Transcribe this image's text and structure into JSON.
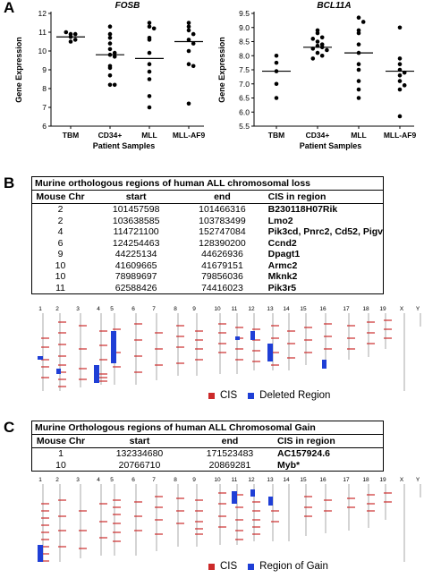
{
  "panels": {
    "a": "A",
    "b": "B",
    "c": "C"
  },
  "colors": {
    "cis": "#cc2a2a",
    "region": "#1f3fd6",
    "chrom_line": "#aaaaaa",
    "marker": "#000000"
  },
  "chart_data": [
    {
      "type": "scatter",
      "title": "FOSB",
      "xlabel": "Patient Samples",
      "ylabel": "Gene Expression",
      "categories": [
        "TBM",
        "CD34+",
        "MLL",
        "MLL-AF9"
      ],
      "ylim": [
        6,
        12
      ],
      "yticks": [
        "6",
        "7",
        "8",
        "9",
        "10",
        "11",
        "12"
      ],
      "means": [
        10.75,
        9.8,
        9.6,
        10.5
      ],
      "points": [
        [
          10.9,
          10.9,
          10.75,
          10.5,
          11.0,
          10.6
        ],
        [
          11.3,
          10.9,
          10.7,
          10.4,
          10.1,
          9.8,
          9.7,
          9.2,
          9.1,
          8.7,
          8.2,
          8.2,
          9.9
        ],
        [
          11.5,
          11.3,
          11.2,
          10.7,
          10.6,
          9.9,
          9.3,
          8.9,
          8.5,
          7.6,
          7.0
        ],
        [
          11.5,
          11.3,
          11.1,
          10.9,
          10.6,
          10.4,
          10.0,
          9.3,
          9.2,
          7.2
        ]
      ]
    },
    {
      "type": "scatter",
      "title": "BCL11A",
      "xlabel": "Patient Samples",
      "ylabel": "Gene Expression",
      "categories": [
        "TBM",
        "CD34+",
        "MLL",
        "MLL-AF9"
      ],
      "ylim": [
        5.5,
        9.5
      ],
      "yticks": [
        "5.5",
        "6.0",
        "6.5",
        "7.0",
        "7.5",
        "8.0",
        "8.5",
        "9.0",
        "9.5"
      ],
      "means": [
        7.45,
        8.3,
        8.1,
        7.45
      ],
      "points": [
        [
          8.0,
          7.75,
          7.45,
          7.0,
          6.5
        ],
        [
          8.9,
          8.8,
          8.65,
          8.5,
          8.4,
          8.35,
          8.3,
          8.25,
          8.2,
          8.1,
          8.0,
          7.9,
          8.6
        ],
        [
          9.35,
          9.2,
          8.9,
          8.8,
          8.4,
          8.1,
          7.7,
          7.5,
          7.1,
          6.8,
          6.5
        ],
        [
          9.0,
          7.9,
          7.7,
          7.5,
          7.4,
          7.3,
          7.1,
          6.95,
          6.8,
          5.85
        ]
      ]
    }
  ],
  "table_b": {
    "title": "Murine orthologous regions of human ALL chromosomal loss",
    "headers": [
      "Mouse Chr",
      "start",
      "end",
      "CIS in region"
    ],
    "rows": [
      [
        "2",
        "101457598",
        "101466316",
        "B230118H07Rik"
      ],
      [
        "2",
        "103638585",
        "103783499",
        "Lmo2"
      ],
      [
        "4",
        "114721100",
        "152747084",
        "Pik3cd, Pnrc2, Cd52, Pigv"
      ],
      [
        "6",
        "124254463",
        "128390200",
        "Ccnd2"
      ],
      [
        "9",
        "44225134",
        "44626936",
        "Dpagt1"
      ],
      [
        "10",
        "41609665",
        "41679151",
        "Armc2"
      ],
      [
        "10",
        "78989697",
        "79856036",
        "Mknk2"
      ],
      [
        "11",
        "62588426",
        "74416023",
        "Pik3r5"
      ]
    ]
  },
  "table_c": {
    "title": "Murine Orthologous regions of human ALL Chromosomal Gain",
    "headers": [
      "Mouse Chr",
      "start",
      "end",
      "CIS in region"
    ],
    "rows": [
      [
        "1",
        "132334680",
        "171523483",
        "AC157924.6"
      ],
      [
        "10",
        "20766710",
        "20869281",
        "Myb*"
      ]
    ]
  },
  "chrom_labels": [
    "1",
    "2",
    "3",
    "4",
    "5",
    "6",
    "7",
    "8",
    "9",
    "10",
    "11",
    "12",
    "13",
    "14",
    "15",
    "16",
    "17",
    "18",
    "19",
    "X",
    "Y"
  ],
  "legend_b": {
    "cis": "CIS",
    "region": "Deleted Region"
  },
  "legend_c": {
    "cis": "CIS",
    "region": "Region of Gain"
  }
}
